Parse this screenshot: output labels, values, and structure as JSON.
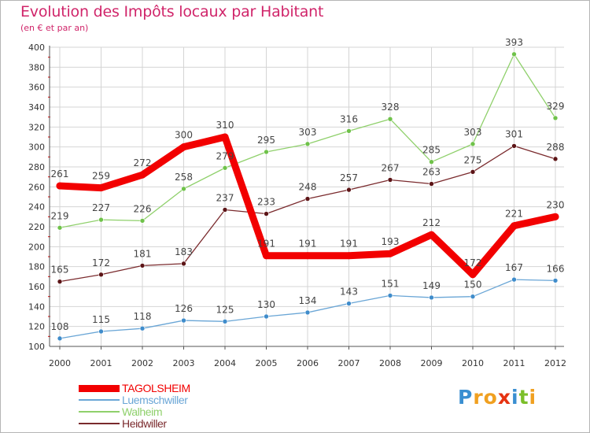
{
  "header": {
    "title": "Evolution des Impôts locaux par Habitant",
    "subtitle": "(en € et par an)"
  },
  "colors": {
    "title": "#d0256a",
    "grid": "#d4d4d4",
    "axis": "#555555",
    "tick_red": "#e30000"
  },
  "chart_data": {
    "type": "line",
    "title": "Evolution des Impôts locaux par Habitant",
    "subtitle": "(en € et par an)",
    "xlabel": "",
    "ylabel": "",
    "x": [
      "2000",
      "2001",
      "2002",
      "2003",
      "2004",
      "2005",
      "2006",
      "2007",
      "2008",
      "2009",
      "2010",
      "2011",
      "2012"
    ],
    "ylim": [
      100,
      400
    ],
    "yticks": [
      100,
      120,
      140,
      160,
      180,
      200,
      220,
      240,
      260,
      280,
      300,
      320,
      340,
      360,
      380,
      400
    ],
    "grid": true,
    "legend_position": "bottom-left",
    "series": [
      {
        "name": "Heidwiller",
        "color": "#7a2a2d",
        "marker": "#5c1416",
        "width": 1.3,
        "values": [
          165,
          172,
          181,
          183,
          237,
          233,
          248,
          257,
          267,
          263,
          275,
          301,
          288
        ]
      },
      {
        "name": "Walheim",
        "color": "#8fd06b",
        "marker": "#6fc24a",
        "width": 1.3,
        "values": [
          219,
          227,
          226,
          258,
          279,
          295,
          303,
          316,
          328,
          285,
          303,
          393,
          329
        ]
      },
      {
        "name": "Luemschwiller",
        "color": "#6aa6d6",
        "marker": "#3f8ccb",
        "width": 1.3,
        "values": [
          108,
          115,
          118,
          126,
          125,
          130,
          134,
          143,
          151,
          149,
          150,
          167,
          166
        ]
      },
      {
        "name": "TAGOLSHEIM",
        "color": "#f20000",
        "marker": "#f20000",
        "width": 9,
        "values": [
          261,
          259,
          272,
          300,
          310,
          191,
          191,
          191,
          193,
          212,
          172,
          221,
          230
        ]
      }
    ]
  },
  "legend": {
    "items": [
      {
        "label": "TAGOLSHEIM",
        "color": "#f20000",
        "thickness": 9
      },
      {
        "label": "Luemschwiller",
        "color": "#6aa6d6",
        "thickness": 2
      },
      {
        "label": "Walheim",
        "color": "#8fd06b",
        "thickness": 2
      },
      {
        "label": "Heidwiller",
        "color": "#7a2a2d",
        "thickness": 2
      }
    ]
  },
  "logo": {
    "letters": [
      {
        "ch": "P",
        "color": "#3a8fd1"
      },
      {
        "ch": "r",
        "color": "#f0a020"
      },
      {
        "ch": "o",
        "color": "#f0a020"
      },
      {
        "ch": "x",
        "color": "#e63312"
      },
      {
        "ch": "i",
        "color": "#3a8fd1"
      },
      {
        "ch": "t",
        "color": "#7bbf2a"
      },
      {
        "ch": "i",
        "color": "#f0a020"
      }
    ]
  }
}
